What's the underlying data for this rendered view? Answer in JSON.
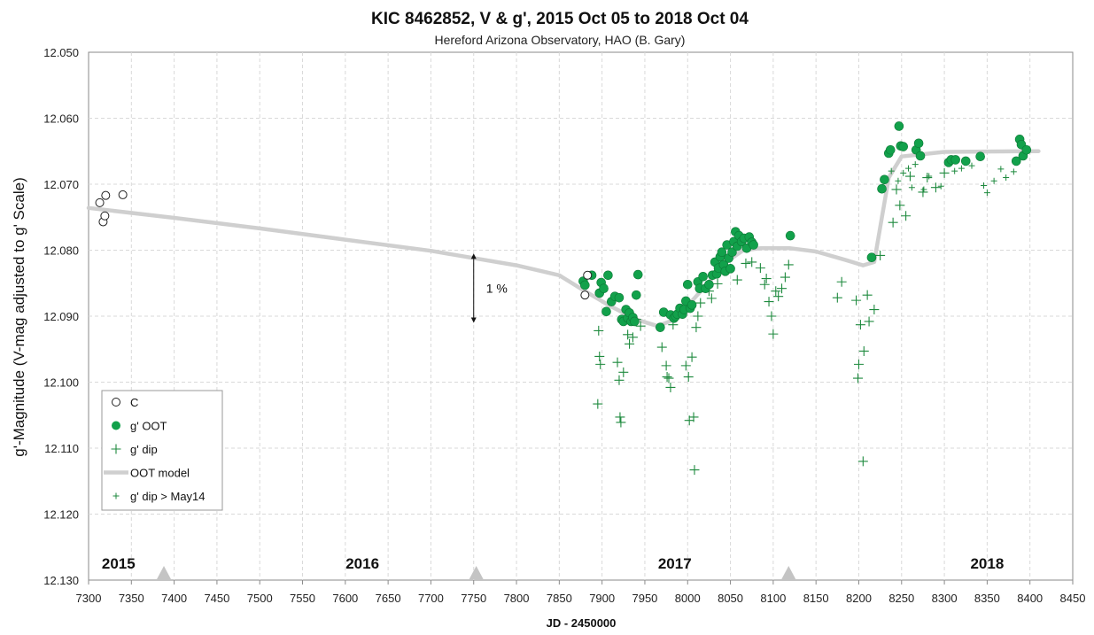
{
  "chart_data": {
    "type": "scatter",
    "title": "KIC 8462852, V & g', 2015 Oct 05 to 2018 Oct 04",
    "subtitle": "Hereford Arizona Observatory, HAO (B. Gary)",
    "xlabel": "JD - 2450000",
    "ylabel": "g'-Magnitude (V-mag adjusted to g' Scale)",
    "xlim": [
      7300,
      8450
    ],
    "ylim": [
      12.05,
      12.13
    ],
    "y_inverted": true,
    "grid": true,
    "x_ticks": [
      7300,
      7350,
      7400,
      7450,
      7500,
      7550,
      7600,
      7650,
      7700,
      7750,
      7800,
      7850,
      7900,
      7950,
      8000,
      8050,
      8100,
      8150,
      8200,
      8250,
      8300,
      8350,
      8400,
      8450
    ],
    "y_ticks": [
      "12.050",
      "12.060",
      "12.070",
      "12.080",
      "12.090",
      "12.100",
      "12.110",
      "12.120",
      "12.130"
    ],
    "legend_position": "lower-left",
    "legend": [
      "C",
      "g' OOT",
      "g' dip",
      "OOT model",
      "g' dip > May14"
    ],
    "year_labels": [
      {
        "text": "2015",
        "x": 7335
      },
      {
        "text": "2016",
        "x": 7620
      },
      {
        "text": "2017",
        "x": 7985
      },
      {
        "text": "2018",
        "x": 8350
      }
    ],
    "year_markers": [
      7388,
      7753,
      8118
    ],
    "annotation": {
      "text": "1 %",
      "x": 7750,
      "y_from": 12.0805,
      "y_to": 12.091
    },
    "colors": {
      "c": "#222222",
      "oot": "#12a14b",
      "dip": "#1e8a3e",
      "model": "#cfcfcf",
      "marker": "#c4c4c4"
    },
    "series": [
      {
        "name": "C",
        "marker": "open-circle",
        "points": [
          [
            7313,
            12.0728
          ],
          [
            7317,
            12.0757
          ],
          [
            7319,
            12.0748
          ],
          [
            7320,
            12.0717
          ],
          [
            7340,
            12.0716
          ],
          [
            7880,
            12.0868
          ],
          [
            7883,
            12.0838
          ]
        ]
      },
      {
        "name": "g' OOT",
        "marker": "filled-circle",
        "points": [
          [
            7878,
            12.0847
          ],
          [
            7880,
            12.0853
          ],
          [
            7888,
            12.0838
          ],
          [
            7897,
            12.0865
          ],
          [
            7899,
            12.0849
          ],
          [
            7902,
            12.0858
          ],
          [
            7905,
            12.0893
          ],
          [
            7907,
            12.0838
          ],
          [
            7911,
            12.0878
          ],
          [
            7915,
            12.087
          ],
          [
            7920,
            12.0872
          ],
          [
            7923,
            12.0905
          ],
          [
            7925,
            12.0908
          ],
          [
            7928,
            12.089
          ],
          [
            7930,
            12.0903
          ],
          [
            7932,
            12.0895
          ],
          [
            7934,
            12.0908
          ],
          [
            7936,
            12.0902
          ],
          [
            7938,
            12.0908
          ],
          [
            7940,
            12.0868
          ],
          [
            7942,
            12.0837
          ],
          [
            7968,
            12.0917
          ],
          [
            7972,
            12.0894
          ],
          [
            7980,
            12.0898
          ],
          [
            7984,
            12.0903
          ],
          [
            7986,
            12.09
          ],
          [
            7988,
            12.0897
          ],
          [
            7991,
            12.0888
          ],
          [
            7994,
            12.0897
          ],
          [
            7996,
            12.089
          ],
          [
            7998,
            12.0877
          ],
          [
            8000,
            12.0852
          ],
          [
            8003,
            12.0888
          ],
          [
            8005,
            12.0883
          ],
          [
            8012,
            12.0848
          ],
          [
            8014,
            12.0858
          ],
          [
            8018,
            12.084
          ],
          [
            8021,
            12.0858
          ],
          [
            8025,
            12.0852
          ],
          [
            8029,
            12.0838
          ],
          [
            8032,
            12.0818
          ],
          [
            8034,
            12.0836
          ],
          [
            8036,
            12.0827
          ],
          [
            8038,
            12.081
          ],
          [
            8040,
            12.0803
          ],
          [
            8042,
            12.0822
          ],
          [
            8044,
            12.0832
          ],
          [
            8046,
            12.0792
          ],
          [
            8048,
            12.0812
          ],
          [
            8050,
            12.0828
          ],
          [
            8052,
            12.0803
          ],
          [
            8054,
            12.0787
          ],
          [
            8056,
            12.0772
          ],
          [
            8058,
            12.0794
          ],
          [
            8060,
            12.0778
          ],
          [
            8063,
            12.0787
          ],
          [
            8066,
            12.0782
          ],
          [
            8069,
            12.0797
          ],
          [
            8072,
            12.078
          ],
          [
            8075,
            12.0788
          ],
          [
            8077,
            12.0792
          ],
          [
            8120,
            12.0778
          ],
          [
            8215,
            12.0811
          ],
          [
            8227,
            12.0707
          ],
          [
            8230,
            12.0693
          ],
          [
            8235,
            12.0653
          ],
          [
            8237,
            12.0648
          ],
          [
            8247,
            12.0612
          ],
          [
            8249,
            12.0642
          ],
          [
            8252,
            12.0643
          ],
          [
            8267,
            12.0648
          ],
          [
            8270,
            12.0638
          ],
          [
            8272,
            12.0657
          ],
          [
            8305,
            12.0667
          ],
          [
            8308,
            12.0663
          ],
          [
            8313,
            12.0663
          ],
          [
            8325,
            12.0665
          ],
          [
            8342,
            12.0658
          ],
          [
            8384,
            12.0665
          ],
          [
            8388,
            12.0632
          ],
          [
            8390,
            12.064
          ],
          [
            8392,
            12.0657
          ],
          [
            8396,
            12.0648
          ]
        ]
      },
      {
        "name": "g' dip",
        "marker": "plus",
        "points": [
          [
            7895,
            12.1033
          ],
          [
            7896,
            12.0922
          ],
          [
            7897,
            12.0961
          ],
          [
            7898,
            12.0973
          ],
          [
            7918,
            12.097
          ],
          [
            7920,
            12.0997
          ],
          [
            7921,
            12.1053
          ],
          [
            7922,
            12.1061
          ],
          [
            7925,
            12.0985
          ],
          [
            7930,
            12.0928
          ],
          [
            7932,
            12.0942
          ],
          [
            7936,
            12.0932
          ],
          [
            7940,
            12.0905
          ],
          [
            7945,
            12.0915
          ],
          [
            7970,
            12.0947
          ],
          [
            7975,
            12.0975
          ],
          [
            7976,
            12.0992
          ],
          [
            7978,
            12.0994
          ],
          [
            7980,
            12.1008
          ],
          [
            7983,
            12.0913
          ],
          [
            7998,
            12.0975
          ],
          [
            8001,
            12.0992
          ],
          [
            8002,
            12.1058
          ],
          [
            8005,
            12.0962
          ],
          [
            8007,
            12.1053
          ],
          [
            8008,
            12.1133
          ],
          [
            8010,
            12.0917
          ],
          [
            8012,
            12.09
          ],
          [
            8015,
            12.088
          ],
          [
            8025,
            12.0862
          ],
          [
            8028,
            12.0873
          ],
          [
            8035,
            12.0851
          ],
          [
            8058,
            12.0845
          ],
          [
            8068,
            12.082
          ],
          [
            8075,
            12.0818
          ],
          [
            8085,
            12.0827
          ],
          [
            8090,
            12.0852
          ],
          [
            8092,
            12.0843
          ],
          [
            8095,
            12.0878
          ],
          [
            8098,
            12.09
          ],
          [
            8100,
            12.0927
          ],
          [
            8103,
            12.0862
          ],
          [
            8106,
            12.087
          ],
          [
            8110,
            12.0858
          ],
          [
            8114,
            12.0841
          ],
          [
            8118,
            12.0822
          ],
          [
            8175,
            12.0872
          ],
          [
            8180,
            12.0848
          ],
          [
            8197,
            12.0876
          ],
          [
            8199,
            12.0994
          ],
          [
            8200,
            12.0973
          ],
          [
            8202,
            12.0913
          ],
          [
            8205,
            12.112
          ],
          [
            8206,
            12.0953
          ],
          [
            8210,
            12.0868
          ],
          [
            8212,
            12.0908
          ],
          [
            8218,
            12.089
          ],
          [
            8225,
            12.0808
          ],
          [
            8240,
            12.0758
          ],
          [
            8244,
            12.0708
          ],
          [
            8248,
            12.0732
          ],
          [
            8255,
            12.0748
          ],
          [
            8260,
            12.0688
          ],
          [
            8275,
            12.0712
          ],
          [
            8280,
            12.069
          ],
          [
            8290,
            12.0705
          ],
          [
            8300,
            12.0683
          ]
        ]
      },
      {
        "name": "g' dip > May14",
        "marker": "small-plus",
        "points": [
          [
            8238,
            12.068
          ],
          [
            8246,
            12.0695
          ],
          [
            8252,
            12.0683
          ],
          [
            8258,
            12.0676
          ],
          [
            8262,
            12.0705
          ],
          [
            8266,
            12.067
          ],
          [
            8276,
            12.0708
          ],
          [
            8282,
            12.0688
          ],
          [
            8296,
            12.0703
          ],
          [
            8312,
            12.068
          ],
          [
            8320,
            12.0676
          ],
          [
            8332,
            12.0672
          ],
          [
            8346,
            12.0702
          ],
          [
            8350,
            12.0713
          ],
          [
            8358,
            12.0695
          ],
          [
            8366,
            12.0677
          ],
          [
            8372,
            12.069
          ],
          [
            8381,
            12.0681
          ]
        ]
      },
      {
        "name": "OOT model",
        "marker": "line",
        "points": [
          [
            7300,
            12.0736
          ],
          [
            7400,
            12.0751
          ],
          [
            7500,
            12.0767
          ],
          [
            7600,
            12.0784
          ],
          [
            7700,
            12.0801
          ],
          [
            7800,
            12.0823
          ],
          [
            7850,
            12.0838
          ],
          [
            7880,
            12.0862
          ],
          [
            7910,
            12.0885
          ],
          [
            7940,
            12.0905
          ],
          [
            7965,
            12.0915
          ],
          [
            7985,
            12.0905
          ],
          [
            8005,
            12.0877
          ],
          [
            8025,
            12.0848
          ],
          [
            8045,
            12.0818
          ],
          [
            8065,
            12.08
          ],
          [
            8085,
            12.0797
          ],
          [
            8120,
            12.0797
          ],
          [
            8150,
            12.0802
          ],
          [
            8185,
            12.0815
          ],
          [
            8205,
            12.0823
          ],
          [
            8218,
            12.0818
          ],
          [
            8227,
            12.075
          ],
          [
            8235,
            12.069
          ],
          [
            8250,
            12.0658
          ],
          [
            8300,
            12.0651
          ],
          [
            8410,
            12.065
          ]
        ]
      }
    ]
  }
}
